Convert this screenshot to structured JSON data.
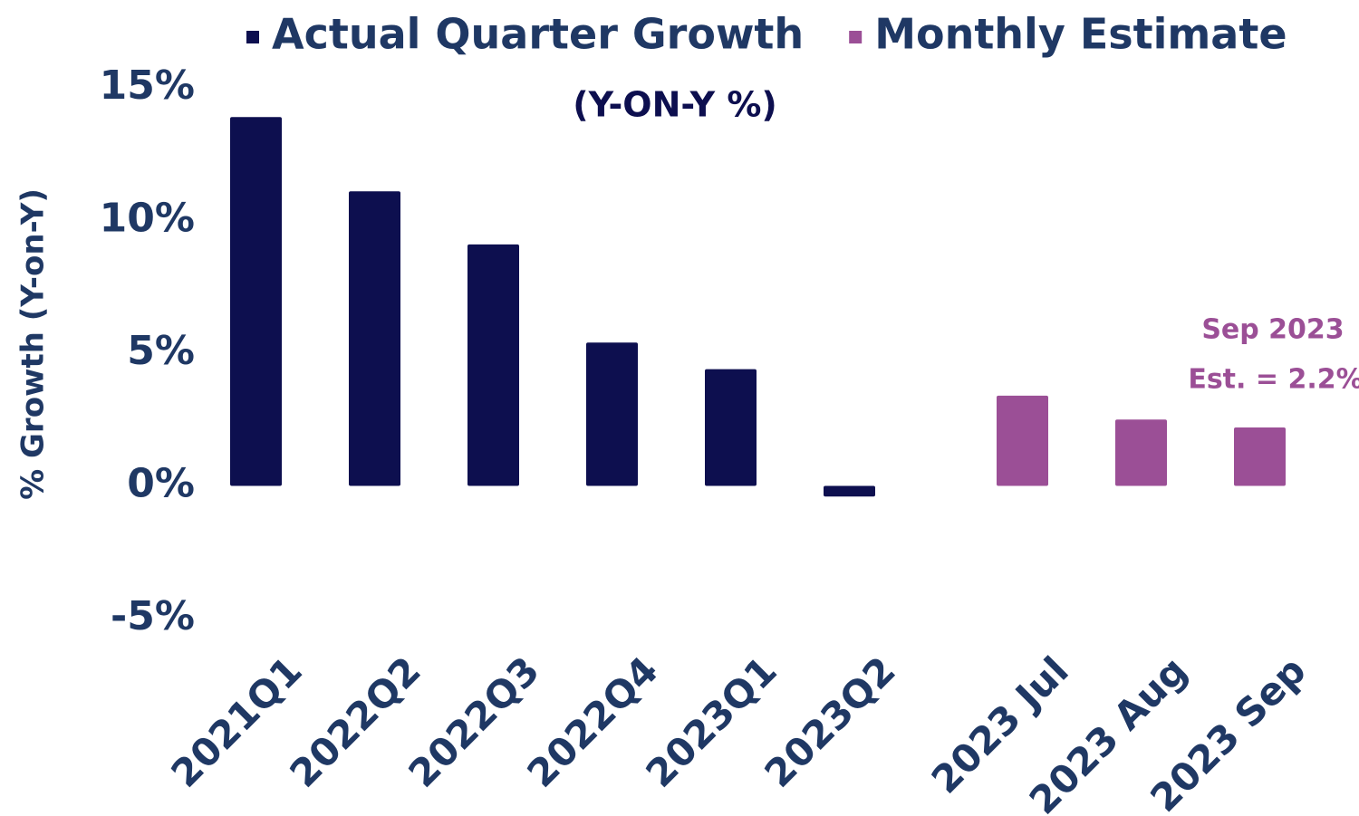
{
  "chart_data": {
    "type": "bar",
    "title": "(Y-ON-Y %)",
    "y_label": "% Growth (Y-on-Y)",
    "categories": [
      "2021Q1",
      "2022Q2",
      "2022Q3",
      "2022Q4",
      "2023Q1",
      "2023Q2",
      "2023 Jul",
      "2023 Aug",
      "2023 Sep"
    ],
    "series": [
      {
        "name": "Actual Quarter Growth",
        "color": "#0d0f4f",
        "values": [
          13.9,
          11.1,
          9.1,
          5.4,
          4.4,
          -0.4,
          null,
          null,
          null
        ]
      },
      {
        "name": "Monthly Estimate",
        "color": "#9b4f96",
        "values": [
          null,
          null,
          null,
          null,
          null,
          null,
          3.4,
          2.5,
          2.2
        ]
      }
    ],
    "ylim": [
      -5,
      15
    ],
    "yticks": [
      {
        "value": -5,
        "label": "-5%"
      },
      {
        "value": 0,
        "label": "0%"
      },
      {
        "value": 5,
        "label": "5%"
      },
      {
        "value": 10,
        "label": "10%"
      },
      {
        "value": 15,
        "label": "15%"
      }
    ],
    "annotation": [
      "Sep 2023",
      "Est. = 2.2%"
    ],
    "grid": false
  }
}
